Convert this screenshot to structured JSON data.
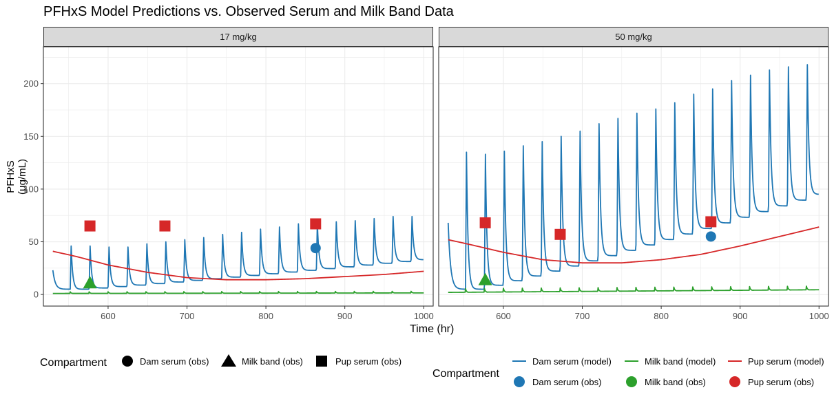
{
  "title": "PFHxS Model Predictions vs. Observed Serum and Milk Band Data",
  "colors": {
    "dam": "#1f77b4",
    "milk": "#2ca02c",
    "pup": "#d62728",
    "panel_border": "#333333",
    "grid": "#ebebeb",
    "strip_bg": "#d9d9d9"
  },
  "legend": {
    "obs": {
      "title": "Compartment",
      "items": [
        {
          "label": "Dam serum (obs)",
          "shape": "circle"
        },
        {
          "label": "Milk band (obs)",
          "shape": "triangle"
        },
        {
          "label": "Pup serum (obs)",
          "shape": "square"
        }
      ]
    },
    "combined": {
      "title": "Compartment",
      "lines": [
        {
          "label": "Dam serum (model)",
          "color_key": "dam"
        },
        {
          "label": "Milk band (model)",
          "color_key": "milk"
        },
        {
          "label": "Pup serum (model)",
          "color_key": "pup"
        }
      ],
      "points": [
        {
          "label": "Dam serum (obs)",
          "color_key": "dam"
        },
        {
          "label": "Milk band (obs)",
          "color_key": "milk"
        },
        {
          "label": "Pup serum (obs)",
          "color_key": "pup"
        }
      ]
    }
  },
  "chart_data": [
    {
      "type": "line",
      "panel": "17 mg/kg",
      "xlabel": "Time (hr)",
      "ylabel": "PFHxS (µg/mL)",
      "xlim": [
        518,
        1012
      ],
      "ylim": [
        -11,
        235
      ],
      "xticks": [
        600,
        700,
        800,
        900,
        1000
      ],
      "yticks": [
        0,
        50,
        100,
        150,
        200
      ],
      "grid": true,
      "series": [
        {
          "name": "Dam serum (model)",
          "color_key": "dam",
          "model": "dam",
          "dose_times": [
            552,
            576,
            600,
            624,
            648,
            672,
            696,
            720,
            744,
            768,
            792,
            816,
            840,
            864,
            888,
            912,
            936,
            960,
            984
          ],
          "peaks": [
            46,
            46,
            45,
            45,
            48,
            50,
            52,
            54,
            57,
            59,
            62,
            64,
            67,
            68,
            69,
            70,
            72,
            74,
            74
          ],
          "trough_start": 5,
          "trough_end": 33,
          "start_value": 23
        },
        {
          "name": "Milk band (model)",
          "color_key": "milk",
          "model": "milk",
          "base_start": 1.0,
          "base_end": 1.5,
          "spike": 1.5,
          "dose_times": [
            552,
            576,
            600,
            624,
            648,
            672,
            696,
            720,
            744,
            768,
            792,
            816,
            840,
            864,
            888,
            912,
            936,
            960,
            984
          ]
        },
        {
          "name": "Pup serum (model)",
          "color_key": "pup",
          "model": "curve",
          "x": [
            530,
            560,
            600,
            650,
            700,
            750,
            800,
            850,
            900,
            950,
            1000
          ],
          "y": [
            41,
            36,
            28,
            21,
            16,
            14,
            14,
            15,
            17,
            19,
            22
          ]
        }
      ],
      "observations": [
        {
          "name": "Dam serum (obs)",
          "color_key": "dam",
          "shape": "circle",
          "x": [
            863
          ],
          "y": [
            44
          ]
        },
        {
          "name": "Milk band (obs)",
          "color_key": "milk",
          "shape": "triangle",
          "x": [
            577
          ],
          "y": [
            11
          ]
        },
        {
          "name": "Pup serum (obs)",
          "color_key": "pup",
          "shape": "square",
          "x": [
            577,
            672,
            863
          ],
          "y": [
            65,
            65,
            67
          ]
        }
      ]
    },
    {
      "type": "line",
      "panel": "50 mg/kg",
      "xlabel": "Time (hr)",
      "ylabel": "PFHxS (µg/mL)",
      "xlim": [
        518,
        1012
      ],
      "ylim": [
        -11,
        235
      ],
      "xticks": [
        600,
        700,
        800,
        900,
        1000
      ],
      "yticks": [
        0,
        50,
        100,
        150,
        200
      ],
      "grid": true,
      "series": [
        {
          "name": "Dam serum (model)",
          "color_key": "dam",
          "model": "dam",
          "dose_times": [
            552,
            576,
            600,
            624,
            648,
            672,
            696,
            720,
            744,
            768,
            792,
            816,
            840,
            864,
            888,
            912,
            936,
            960,
            984
          ],
          "peaks": [
            135,
            133,
            136,
            141,
            145,
            150,
            155,
            162,
            167,
            172,
            176,
            182,
            190,
            195,
            203,
            208,
            213,
            216,
            218
          ],
          "trough_start": 5,
          "trough_end": 95,
          "start_value": 68
        },
        {
          "name": "Milk band (model)",
          "color_key": "milk",
          "model": "milk",
          "base_start": 2.0,
          "base_end": 4.5,
          "spike": 3.5,
          "dose_times": [
            552,
            576,
            600,
            624,
            648,
            672,
            696,
            720,
            744,
            768,
            792,
            816,
            840,
            864,
            888,
            912,
            936,
            960,
            984
          ]
        },
        {
          "name": "Pup serum (model)",
          "color_key": "pup",
          "model": "curve",
          "x": [
            530,
            560,
            600,
            650,
            700,
            750,
            800,
            850,
            900,
            950,
            1000
          ],
          "y": [
            52,
            47,
            40,
            33,
            30,
            30,
            33,
            38,
            46,
            55,
            64
          ]
        }
      ],
      "observations": [
        {
          "name": "Dam serum (obs)",
          "color_key": "dam",
          "shape": "circle",
          "x": [
            863
          ],
          "y": [
            55
          ]
        },
        {
          "name": "Milk band (obs)",
          "color_key": "milk",
          "shape": "triangle",
          "x": [
            577
          ],
          "y": [
            14
          ]
        },
        {
          "name": "Pup serum (obs)",
          "color_key": "pup",
          "shape": "square",
          "x": [
            577,
            672,
            863
          ],
          "y": [
            68,
            57,
            69
          ]
        }
      ]
    }
  ]
}
